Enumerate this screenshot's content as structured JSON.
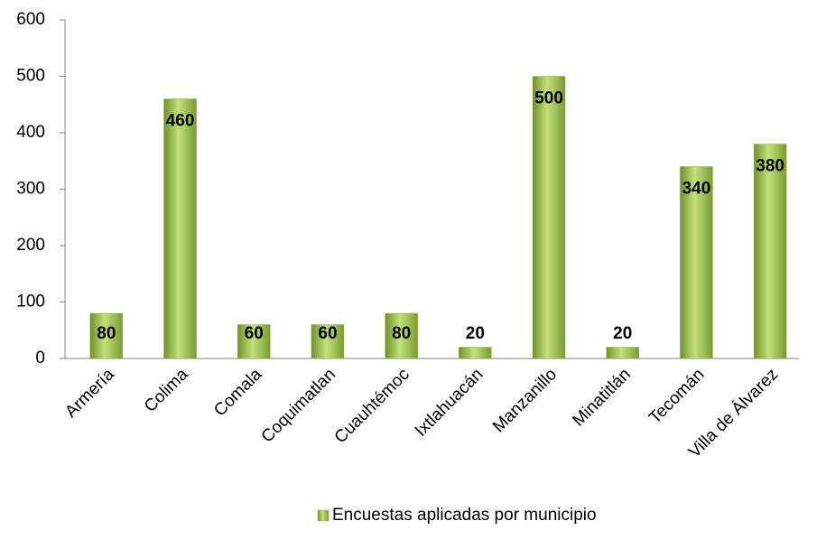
{
  "chart_data": {
    "type": "bar",
    "categories": [
      "Armería",
      "Colima",
      "Comala",
      "Coquimatlan",
      "Cuauhtémoc",
      "Ixtlahuacán",
      "Manzanillo",
      "Minatitlán",
      "Tecomán",
      "Villa de Álvarez"
    ],
    "series": [
      {
        "name": "Encuestas aplicadas por municipio",
        "color": "#8cb33a",
        "values": [
          80,
          460,
          60,
          60,
          80,
          20,
          500,
          20,
          340,
          380
        ]
      }
    ],
    "ylim": [
      0,
      600
    ],
    "yticks": [
      0,
      100,
      200,
      300,
      400,
      500,
      600
    ],
    "grid": false,
    "legend": "bottom"
  }
}
